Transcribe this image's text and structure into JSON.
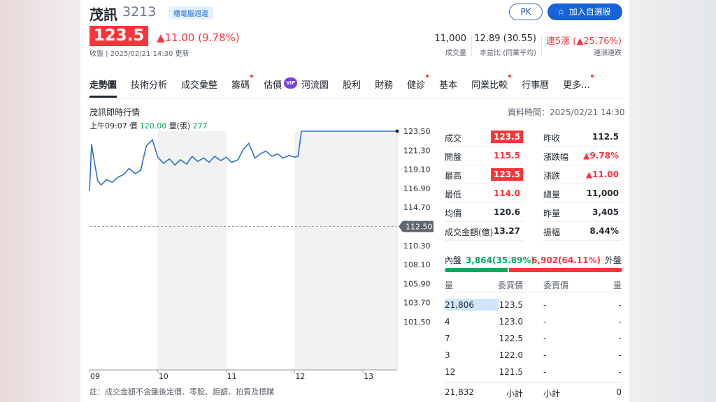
{
  "header": {
    "name": "茂訊",
    "code": "3213",
    "tag": "櫃電腦週邊",
    "buttons": [
      "PK",
      "加入自選股"
    ],
    "price": "123.5",
    "change": "▲11.00 (9.78%)",
    "status": "收盤 | 2025/02/21 14:30 更新",
    "stats": [
      {
        "value": "11,000",
        "label": "成交量"
      },
      {
        "value": "12.89 (30.55)",
        "label": "本益比 (同業平均)"
      },
      {
        "value": "連5漲 (▲25.76%)",
        "label": "連漲連跌"
      }
    ]
  },
  "tabs": [
    {
      "label": "走勢圖",
      "active": true
    },
    {
      "label": "技術分析"
    },
    {
      "label": "成交彙整"
    },
    {
      "label": "籌碼",
      "dot": true
    },
    {
      "label": "估價",
      "badge": "VIP"
    },
    {
      "label": "河流圖"
    },
    {
      "label": "股利"
    },
    {
      "label": "財務"
    },
    {
      "label": "健診",
      "dot": true
    },
    {
      "label": "基本"
    },
    {
      "label": "同業比較",
      "dot": true
    },
    {
      "label": "行事曆"
    },
    {
      "label": "更多...",
      "dot": true
    }
  ],
  "chart_data": {
    "type": "line",
    "title": "茂訊即時行情",
    "data_time": "資料時間：2025/02/21 14:30",
    "info": {
      "time": "上午09:07",
      "price_label": "價",
      "price": "120.00",
      "volume_label": "量(張)",
      "volume": "277"
    },
    "color": "#2d6fcf",
    "xlim": [
      9,
      13.5
    ],
    "xticks": [
      {
        "value": 9,
        "label": "09"
      },
      {
        "value": 10,
        "label": "10"
      },
      {
        "value": 11,
        "label": "11"
      },
      {
        "value": 12,
        "label": "12"
      },
      {
        "value": 13,
        "label": "13"
      }
    ],
    "ylim": [
      101.5,
      123.5
    ],
    "yticks": [
      {
        "value": 123.5,
        "label": "123.50"
      },
      {
        "value": 121.3,
        "label": "121.30"
      },
      {
        "value": 119.1,
        "label": "119.10"
      },
      {
        "value": 116.9,
        "label": "116.90"
      },
      {
        "value": 114.7,
        "label": "114.70"
      },
      {
        "value": 110.3,
        "label": "110.30"
      },
      {
        "value": 108.1,
        "label": "108.10"
      },
      {
        "value": 105.9,
        "label": "105.90"
      },
      {
        "value": 103.7,
        "label": "103.70"
      },
      {
        "value": 101.5,
        "label": "101.50"
      }
    ],
    "reference": {
      "value": 112.5,
      "label": "112.50"
    },
    "x": [
      9.0,
      9.03,
      9.07,
      9.12,
      9.17,
      9.25,
      9.33,
      9.42,
      9.5,
      9.58,
      9.67,
      9.75,
      9.83,
      9.92,
      10.0,
      10.08,
      10.17,
      10.25,
      10.33,
      10.42,
      10.5,
      10.58,
      10.67,
      10.75,
      10.83,
      10.92,
      11.0,
      11.08,
      11.17,
      11.25,
      11.33,
      11.42,
      11.5,
      11.58,
      11.67,
      11.75,
      11.83,
      11.92,
      12.0,
      12.05,
      12.1,
      12.5,
      13.0,
      13.5
    ],
    "values": [
      116.6,
      122.0,
      120.0,
      117.8,
      117.3,
      117.9,
      117.6,
      118.2,
      118.5,
      119.2,
      118.6,
      119.0,
      121.8,
      122.5,
      120.5,
      119.8,
      120.3,
      119.6,
      120.2,
      119.7,
      120.6,
      120.0,
      120.4,
      119.9,
      120.6,
      120.1,
      120.5,
      119.9,
      120.2,
      121.4,
      122.1,
      120.4,
      120.9,
      121.2,
      120.6,
      120.9,
      120.4,
      120.7,
      120.5,
      120.6,
      123.5,
      123.5,
      123.5,
      123.5
    ],
    "note": "註：成交金額不含盤後定價、零股、鉅額、拍賣及標購"
  },
  "quote": [
    [
      {
        "label": "成交",
        "value": "123.5",
        "color": "#ff333a",
        "boxed": true
      },
      {
        "label": "昨收",
        "value": "112.5"
      }
    ],
    [
      {
        "label": "開盤",
        "value": "115.5",
        "color": "#ff333a"
      },
      {
        "label": "漲跌幅",
        "value": "▲9.78%",
        "color": "#ff333a"
      }
    ],
    [
      {
        "label": "最高",
        "value": "123.5",
        "color": "#ff333a",
        "boxed": true
      },
      {
        "label": "漲跌",
        "value": "▲11.00",
        "color": "#ff333a"
      }
    ],
    [
      {
        "label": "最低",
        "value": "114.0",
        "color": "#ff333a"
      },
      {
        "label": "總量",
        "value": "11,000"
      }
    ],
    [
      {
        "label": "均價",
        "value": "120.6"
      },
      {
        "label": "昨量",
        "value": "3,405"
      }
    ],
    [
      {
        "label": "成交金額(億)",
        "value": "13.27"
      },
      {
        "label": "振幅",
        "value": "8.44%"
      }
    ]
  ],
  "pressure": {
    "inner": {
      "label": "內盤",
      "volume": "3,864",
      "pct": 35.89,
      "pct_label": "(35.89%)",
      "color": "#00ab5e"
    },
    "outer": {
      "label": "外盤",
      "volume": "6,902",
      "pct": 64.11,
      "pct_label": "(64.11%)",
      "color": "#ff333a"
    }
  },
  "order_book": {
    "headers": [
      "量",
      "委買價",
      "委賣價",
      "量"
    ],
    "rows": [
      [
        "21,806",
        "123.5",
        "-",
        "-"
      ],
      [
        "4",
        "123.0",
        "-",
        "-"
      ],
      [
        "7",
        "122.5",
        "-",
        "-"
      ],
      [
        "3",
        "122.0",
        "-",
        "-"
      ],
      [
        "12",
        "121.5",
        "-",
        "-"
      ]
    ],
    "total": [
      "21,832",
      "小計",
      "小計",
      "0"
    ]
  }
}
